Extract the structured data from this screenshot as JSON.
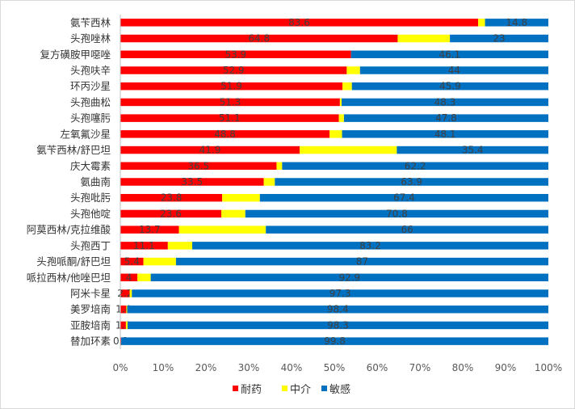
{
  "chart_data": {
    "type": "bar",
    "orientation": "horizontal",
    "stacked": "percent",
    "categories": [
      "氨苄西林",
      "头孢唑林",
      "复方磺胺甲噁唑",
      "头孢呋辛",
      "环丙沙星",
      "头孢曲松",
      "头孢噻肟",
      "左氧氟沙星",
      "氨苄西林/舒巴坦",
      "庆大霉素",
      "氨曲南",
      "头孢吡肟",
      "头孢他啶",
      "阿莫西林/克拉维酸",
      "头孢西丁",
      "头孢哌酮/舒巴坦",
      "哌拉西林/他唑巴坦",
      "阿米卡星",
      "美罗培南",
      "亚胺培南",
      "替加环素"
    ],
    "series": [
      {
        "name": "耐药",
        "color": "#ff0000",
        "values": [
          83.6,
          64.8,
          53.9,
          52.9,
          51.9,
          51.3,
          51.1,
          48.8,
          41.9,
          36.5,
          33.5,
          23.8,
          23.6,
          13.7,
          11.1,
          5.4,
          4,
          2.2,
          1.4,
          1.3,
          0.2
        ],
        "labels": [
          "83.6",
          "64.8",
          "53.9",
          "52.9",
          "51.9",
          "51.3",
          "51.1",
          "48.8",
          "41.9",
          "36.5",
          "33.5",
          "23.8",
          "23.6",
          "13.7",
          "11.1",
          "5.4",
          "4",
          "2.2",
          "1.4",
          "1.3",
          "0.2"
        ]
      },
      {
        "name": "中介",
        "color": "#ffff00",
        "values": [
          1.6,
          12.2,
          0,
          3.1,
          2.2,
          0.4,
          1.2,
          2.9,
          22.7,
          1.3,
          2.6,
          8.8,
          5.6,
          20.3,
          5.7,
          7.6,
          3.1,
          0.5,
          0.2,
          0.4,
          0
        ]
      },
      {
        "name": "敏感",
        "color": "#0070c0",
        "values": [
          14.8,
          23,
          46.1,
          44,
          45.9,
          48.3,
          47.8,
          48.1,
          35.4,
          62.2,
          63.9,
          67.4,
          70.8,
          66,
          83.2,
          87,
          92.9,
          97.3,
          98.4,
          98.3,
          99.8
        ],
        "labels": [
          "14.8",
          "23",
          "46.1",
          "44",
          "45.9",
          "48.3",
          "47.8",
          "48.1",
          "35.4",
          "62.2",
          "63.9",
          "67.4",
          "70.8",
          "66",
          "83.2",
          "87",
          "92.9",
          "97.3",
          "98.4",
          "98.3",
          "99.8"
        ]
      }
    ],
    "xlim": [
      0,
      100
    ],
    "x_ticks": [
      "0%",
      "10%",
      "20%",
      "30%",
      "40%",
      "50%",
      "60%",
      "70%",
      "80%",
      "90%",
      "100%"
    ],
    "grid": false,
    "legend_position": "bottom"
  }
}
